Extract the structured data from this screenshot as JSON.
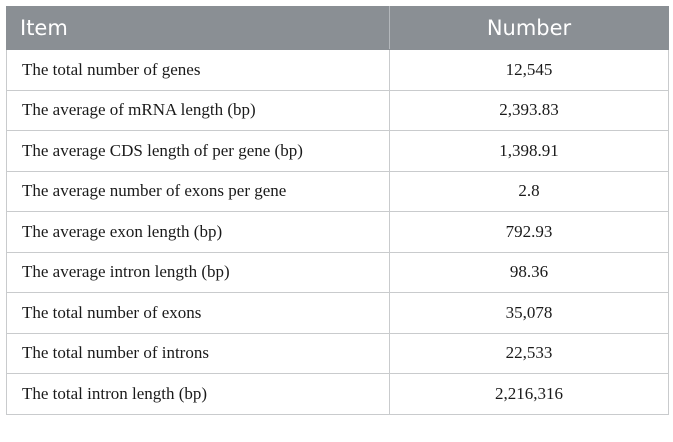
{
  "table": {
    "headers": [
      "Item",
      "Number"
    ],
    "rows": [
      {
        "item": "The total number of genes",
        "number": "12,545"
      },
      {
        "item": "The average of mRNA length (bp)",
        "number": "2,393.83"
      },
      {
        "item": "The average CDS length of per gene (bp)",
        "number": "1,398.91"
      },
      {
        "item": "The average number of exons per gene",
        "number": "2.8"
      },
      {
        "item": "The average exon length (bp)",
        "number": "792.93"
      },
      {
        "item": "The average intron length (bp)",
        "number": "98.36"
      },
      {
        "item": "The total number of exons",
        "number": "35,078"
      },
      {
        "item": "The total number of introns",
        "number": "22,533"
      },
      {
        "item": "The total intron length (bp)",
        "number": "2,216,316"
      }
    ]
  },
  "colors": {
    "header_bg": "#8a8f94",
    "header_text": "#ffffff",
    "border": "#c9cbcd"
  }
}
